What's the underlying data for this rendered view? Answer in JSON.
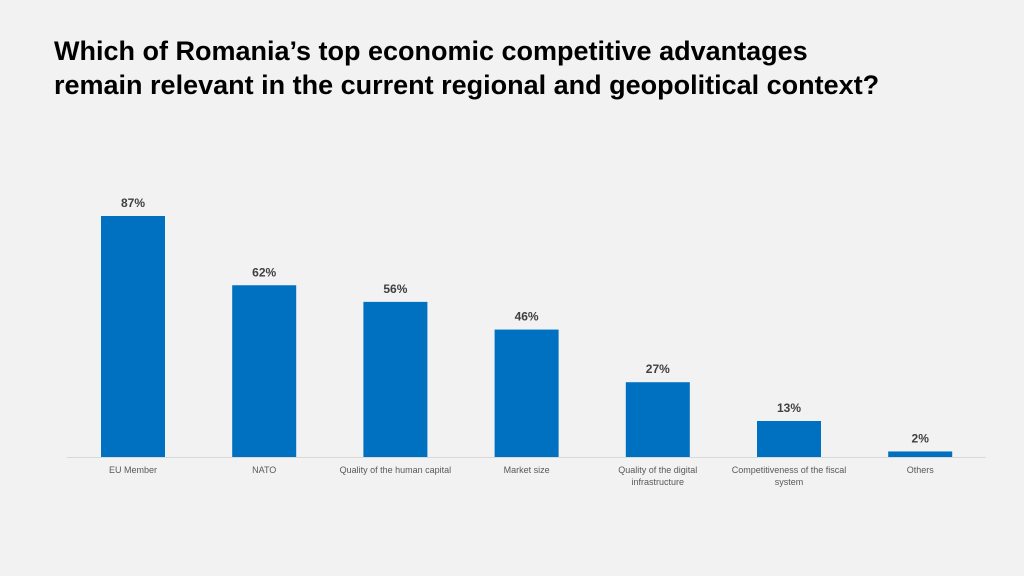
{
  "chart_data": {
    "type": "bar",
    "title": "Which of Romania’s top economic competitive advantages remain relevant in the current regional and geopolitical context?",
    "title_lines": [
      "Which of Romania’s top economic competitive advantages",
      "remain relevant in the current regional and geopolitical context?"
    ],
    "categories": [
      "EU Member",
      "NATO",
      "Quality of the human capital",
      "Market size",
      "Quality of the digital infrastructure",
      "Competitiveness of the fiscal system",
      "Others"
    ],
    "category_lines": [
      [
        "EU Member"
      ],
      [
        "NATO"
      ],
      [
        "Quality of the human capital"
      ],
      [
        "Market size"
      ],
      [
        "Quality of the digital",
        "infrastructure"
      ],
      [
        "Competitiveness of the fiscal",
        "system"
      ],
      [
        "Others"
      ]
    ],
    "values": [
      87,
      62,
      56,
      46,
      27,
      13,
      2
    ],
    "data_labels": [
      "87%",
      "62%",
      "56%",
      "46%",
      "27%",
      "13%",
      "2%"
    ],
    "unit": "%",
    "xlabel": "",
    "ylabel": "",
    "ylim": [
      0,
      100
    ],
    "grid": false,
    "legend": "none",
    "bar_color": "#0070c0"
  }
}
